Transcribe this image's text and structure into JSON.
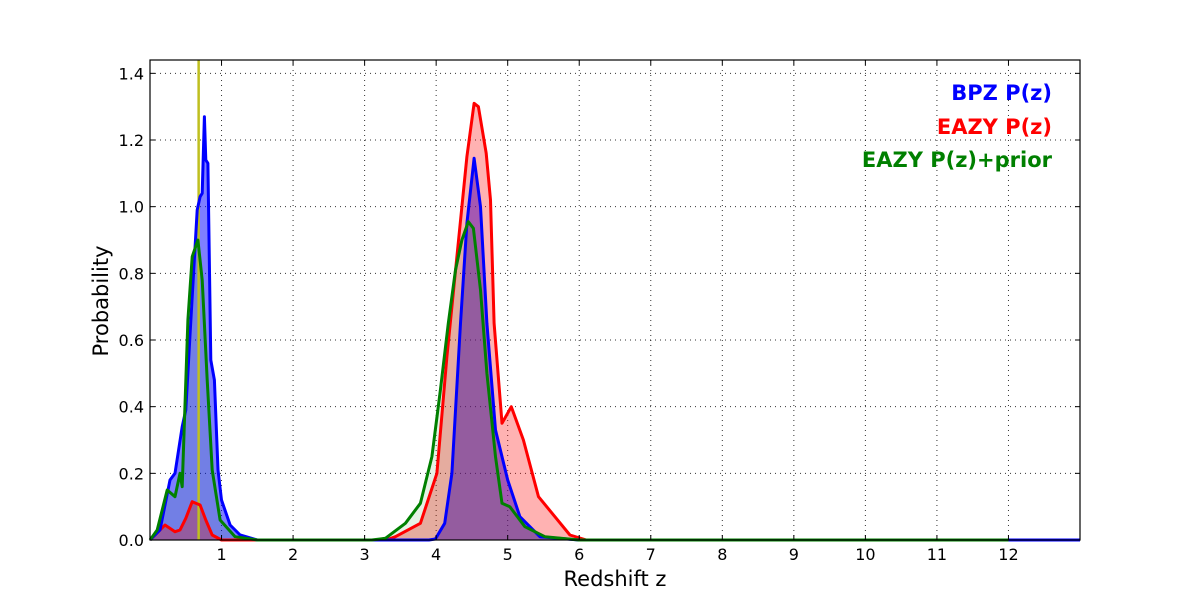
{
  "chart_data": {
    "type": "area",
    "title": "",
    "xlabel": "Redshift z",
    "ylabel": "Probability",
    "xlim": [
      0,
      13
    ],
    "ylim": [
      0,
      1.44
    ],
    "xticks": [
      1,
      2,
      3,
      4,
      5,
      6,
      7,
      8,
      9,
      10,
      11,
      12
    ],
    "yticks": [
      "0.0",
      "0.2",
      "0.4",
      "0.6",
      "0.8",
      "1.0",
      "1.2",
      "1.4"
    ],
    "grid": true,
    "legend_position": "top-right",
    "reference_line": {
      "x": 0.68,
      "color": "#bfbf1f"
    },
    "series": [
      {
        "name": "BPZ P(z)",
        "color": "#0000ff",
        "fill": "#0000ff",
        "fill_opacity": 0.5,
        "x": [
          0,
          0.14,
          0.28,
          0.35,
          0.45,
          0.5,
          0.56,
          0.66,
          0.7,
          0.73,
          0.76,
          0.78,
          0.81,
          0.85,
          0.9,
          0.95,
          1.0,
          1.12,
          1.26,
          1.5,
          3.9,
          3.99,
          4.12,
          4.22,
          4.34,
          4.43,
          4.53,
          4.62,
          4.71,
          4.83,
          5.0,
          5.17,
          5.45,
          6.0,
          13
        ],
        "y": [
          0,
          0.03,
          0.18,
          0.2,
          0.34,
          0.39,
          0.62,
          0.99,
          1.03,
          1.04,
          1.27,
          1.14,
          1.13,
          0.54,
          0.48,
          0.21,
          0.12,
          0.045,
          0.015,
          0,
          0,
          0.003,
          0.05,
          0.2,
          0.65,
          0.95,
          1.145,
          1.0,
          0.65,
          0.33,
          0.18,
          0.07,
          0.01,
          0,
          0
        ]
      },
      {
        "name": "EAZY P(z)",
        "color": "#ff0000",
        "fill": "#ff0000",
        "fill_opacity": 0.3,
        "x": [
          0,
          0.21,
          0.35,
          0.42,
          0.5,
          0.59,
          0.7,
          0.78,
          0.87,
          1.0,
          3.3,
          3.43,
          3.78,
          4.01,
          4.15,
          4.29,
          4.43,
          4.53,
          4.59,
          4.7,
          4.76,
          4.81,
          4.92,
          5.05,
          5.22,
          5.43,
          5.66,
          5.87,
          6.1,
          12
        ],
        "y": [
          0,
          0.045,
          0.025,
          0.03,
          0.065,
          0.115,
          0.105,
          0.06,
          0.015,
          0,
          0,
          0.01,
          0.05,
          0.2,
          0.55,
          0.85,
          1.15,
          1.31,
          1.3,
          1.16,
          1.02,
          0.65,
          0.35,
          0.4,
          0.3,
          0.13,
          0.07,
          0.015,
          0,
          0
        ]
      },
      {
        "name": "EAZY P(z)+prior",
        "color": "#008000",
        "fill": "#008000",
        "fill_opacity": 0.1,
        "x": [
          0,
          0.1,
          0.24,
          0.35,
          0.42,
          0.45,
          0.53,
          0.59,
          0.67,
          0.73,
          0.8,
          0.87,
          0.98,
          1.19,
          1.5,
          3.1,
          3.29,
          3.57,
          3.78,
          3.94,
          4.06,
          4.17,
          4.27,
          4.36,
          4.45,
          4.52,
          4.62,
          4.71,
          4.83,
          4.92,
          5.03,
          5.24,
          5.52,
          6.0,
          12
        ],
        "y": [
          0,
          0.03,
          0.15,
          0.13,
          0.2,
          0.16,
          0.66,
          0.85,
          0.9,
          0.78,
          0.48,
          0.21,
          0.06,
          0.01,
          0,
          0,
          0.005,
          0.05,
          0.11,
          0.25,
          0.45,
          0.65,
          0.81,
          0.9,
          0.955,
          0.935,
          0.75,
          0.5,
          0.25,
          0.11,
          0.1,
          0.04,
          0.01,
          0,
          0
        ]
      }
    ]
  }
}
